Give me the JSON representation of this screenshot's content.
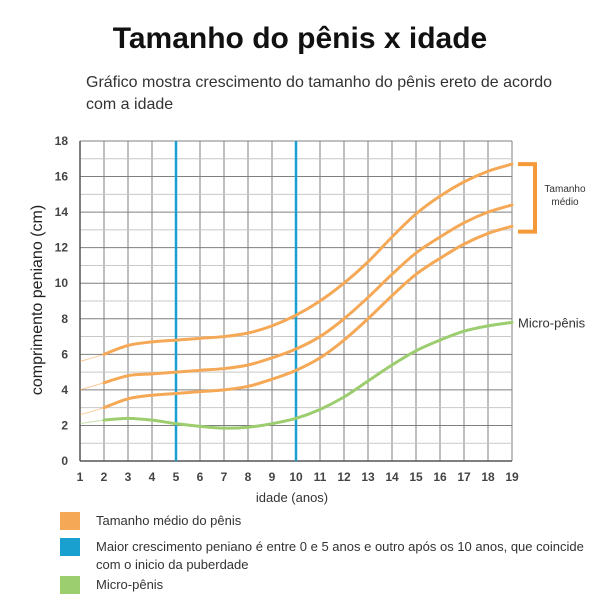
{
  "title": "Tamanho do pênis x idade",
  "subtitle": "Gráfico mostra crescimento do tamanho do pênis ereto de acordo com a idade",
  "colors": {
    "orange": "#f5a855",
    "orange_bracket": "#f59a38",
    "blue": "#1aa0cf",
    "green": "#9ccd6f",
    "grid": "#7f7f7f"
  },
  "chart_data": {
    "type": "line",
    "xlabel": "idade (anos)",
    "ylabel": "comprimento peniano (cm)",
    "xlim": [
      1,
      19
    ],
    "ylim": [
      0,
      18
    ],
    "x_ticks": [
      1,
      2,
      3,
      4,
      5,
      6,
      7,
      8,
      9,
      10,
      11,
      12,
      13,
      14,
      15,
      16,
      17,
      18,
      19
    ],
    "y_ticks": [
      0,
      2,
      4,
      6,
      8,
      10,
      12,
      14,
      16,
      18
    ],
    "grid": true,
    "series": [
      {
        "color": "#f5a855",
        "x": [
          1,
          2,
          3,
          4,
          5,
          6,
          7,
          8,
          9,
          10,
          11,
          12,
          13,
          14,
          15,
          16,
          17,
          18,
          19
        ],
        "values": [
          5.6,
          6.0,
          6.5,
          6.7,
          6.8,
          6.9,
          7.0,
          7.2,
          7.6,
          8.2,
          9.0,
          10.0,
          11.2,
          12.6,
          13.9,
          14.9,
          15.7,
          16.3,
          16.7
        ]
      },
      {
        "color": "#f5a855",
        "x": [
          1,
          2,
          3,
          4,
          5,
          6,
          7,
          8,
          9,
          10,
          11,
          12,
          13,
          14,
          15,
          16,
          17,
          18,
          19
        ],
        "values": [
          4.0,
          4.4,
          4.8,
          4.9,
          5.0,
          5.1,
          5.2,
          5.4,
          5.8,
          6.3,
          7.0,
          8.0,
          9.2,
          10.5,
          11.7,
          12.6,
          13.4,
          14.0,
          14.4
        ]
      },
      {
        "color": "#f5a855",
        "x": [
          1,
          2,
          3,
          4,
          5,
          6,
          7,
          8,
          9,
          10,
          11,
          12,
          13,
          14,
          15,
          16,
          17,
          18,
          19
        ],
        "values": [
          2.6,
          3.0,
          3.5,
          3.7,
          3.8,
          3.9,
          4.0,
          4.2,
          4.6,
          5.1,
          5.8,
          6.8,
          8.0,
          9.3,
          10.5,
          11.4,
          12.2,
          12.8,
          13.2
        ]
      },
      {
        "name": "Micro-pênis",
        "color": "#9ccd6f",
        "x": [
          1,
          2,
          3,
          4,
          5,
          6,
          7,
          8,
          9,
          10,
          11,
          12,
          13,
          14,
          15,
          16,
          17,
          18,
          19
        ],
        "values": [
          2.1,
          2.3,
          2.4,
          2.3,
          2.1,
          1.95,
          1.85,
          1.9,
          2.1,
          2.4,
          2.9,
          3.6,
          4.5,
          5.4,
          6.2,
          6.8,
          7.3,
          7.6,
          7.8
        ]
      }
    ],
    "vertical_lines": [
      {
        "x": 5,
        "color": "#1aa0cf"
      },
      {
        "x": 10,
        "color": "#1aa0cf"
      }
    ],
    "annotations": {
      "bracket_label": "Tamanho médio",
      "bracket_range": [
        12.9,
        16.7
      ],
      "series_label": "Micro-pênis"
    }
  },
  "legend": [
    {
      "color": "#f5a855",
      "text": "Tamanho médio do pênis"
    },
    {
      "color": "#1aa0cf",
      "text": "Maior crescimento peniano é entre 0 e 5 anos e outro após os 10 anos, que coincide com o inicio da puberdade"
    },
    {
      "color": "#9ccd6f",
      "text": "Micro-pênis"
    }
  ]
}
